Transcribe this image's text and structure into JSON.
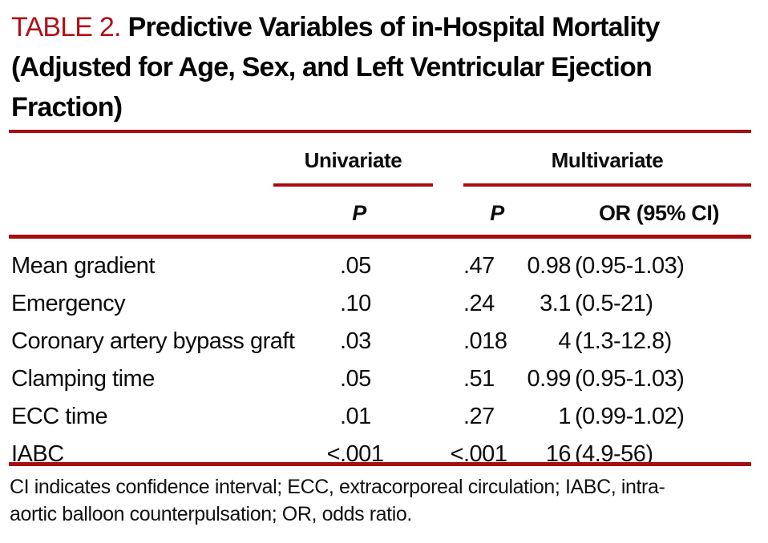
{
  "title": {
    "label": "TABLE 2.",
    "line1": "Predictive Variables of in-Hospital Mortality",
    "line2": "(Adjusted for Age, Sex, and Left Ventricular Ejection",
    "line3": "Fraction)"
  },
  "header": {
    "group1": "Univariate",
    "group2": "Multivariate",
    "uni_p": "P",
    "multi_p": "P",
    "or": "OR (95% CI)"
  },
  "rows": [
    {
      "label": "Mean gradient",
      "uni_p": ".05",
      "multi_p": ".47",
      "or_value": "0.98",
      "or_ci": "(0.95-1.03)"
    },
    {
      "label": "Emergency",
      "uni_p": ".10",
      "multi_p": ".24",
      "or_value": "3.1",
      "or_ci": "(0.5-21)"
    },
    {
      "label": "Coronary artery bypass graft",
      "uni_p": ".03",
      "multi_p": ".018",
      "or_value": "4",
      "or_ci": "(1.3-12.8)"
    },
    {
      "label": "Clamping time",
      "uni_p": ".05",
      "multi_p": ".51",
      "or_value": "0.99",
      "or_ci": "(0.95-1.03)"
    },
    {
      "label": "ECC time",
      "uni_p": ".01",
      "multi_p": ".27",
      "or_value": "1",
      "or_ci": "(0.99-1.02)"
    },
    {
      "label": "IABC",
      "uni_p": "<.001",
      "multi_p": "<.001",
      "or_value": "16",
      "or_ci": "(4.9-56)"
    }
  ],
  "footnote": {
    "line1": "CI indicates confidence interval; ECC, extracorporeal circulation; IABC, intra-",
    "line2": "aortic balloon counterpulsation; OR, odds ratio."
  },
  "colors": {
    "accent_red": "#b01218",
    "rule_red": "#a60d10",
    "text_black": "#0c0c0c"
  }
}
